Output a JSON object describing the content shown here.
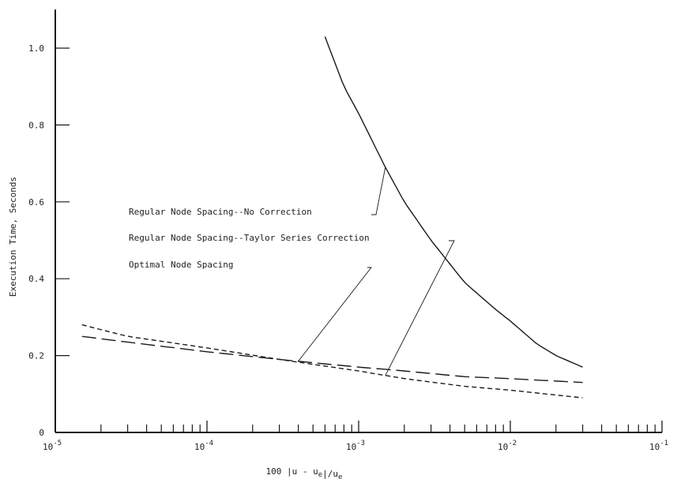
{
  "chart_data": {
    "type": "line",
    "title": "",
    "xlabel": "100 |u - u_e|/u_e",
    "ylabel": "Execution Time, Seconds",
    "x_scale": "log",
    "xlim": [
      1e-05,
      0.1
    ],
    "ylim": [
      0,
      1.1
    ],
    "x_ticks": [
      {
        "value": 1e-05,
        "base": "10",
        "exp": "-5"
      },
      {
        "value": 0.0001,
        "base": "10",
        "exp": "-4"
      },
      {
        "value": 0.001,
        "base": "10",
        "exp": "-3"
      },
      {
        "value": 0.01,
        "base": "10",
        "exp": "-2"
      },
      {
        "value": 0.1,
        "base": "10",
        "exp": "-1"
      }
    ],
    "y_ticks": [
      {
        "value": 0,
        "label": "0"
      },
      {
        "value": 0.2,
        "label": "0.2"
      },
      {
        "value": 0.4,
        "label": "0.4"
      },
      {
        "value": 0.6,
        "label": "0.6"
      },
      {
        "value": 0.8,
        "label": "0.8"
      },
      {
        "value": 1.0,
        "label": "1.0"
      }
    ],
    "grid": false,
    "series": [
      {
        "name": "Regular Node Spacing--No Correction",
        "style": "solid",
        "x": [
          0.0006,
          0.0008,
          0.001,
          0.0015,
          0.002,
          0.003,
          0.005,
          0.008,
          0.01,
          0.015,
          0.02,
          0.03
        ],
        "y": [
          1.03,
          0.9,
          0.83,
          0.69,
          0.6,
          0.5,
          0.39,
          0.32,
          0.29,
          0.23,
          0.2,
          0.17
        ]
      },
      {
        "name": "Regular Node Spacing--Taylor Series Correction",
        "style": "short-dash",
        "x": [
          1.5e-05,
          3e-05,
          0.0001,
          0.0003,
          0.001,
          0.002,
          0.005,
          0.01,
          0.03
        ],
        "y": [
          0.28,
          0.25,
          0.22,
          0.19,
          0.16,
          0.14,
          0.12,
          0.11,
          0.09
        ]
      },
      {
        "name": "Optimal Node Spacing",
        "style": "long-dash",
        "x": [
          1.5e-05,
          3e-05,
          0.0001,
          0.0003,
          0.001,
          0.002,
          0.005,
          0.01,
          0.03
        ],
        "y": [
          0.25,
          0.235,
          0.21,
          0.19,
          0.17,
          0.16,
          0.145,
          0.14,
          0.13
        ]
      }
    ],
    "annotations": [
      {
        "text": "Regular Node Spacing--No Correction",
        "series": 0,
        "at_x": 0.0015
      },
      {
        "text": "Regular Node Spacing--Taylor Series Correction",
        "series": 1,
        "at_x": 0.0015
      },
      {
        "text": "Optimal Node Spacing",
        "series": 2,
        "at_x": 0.0004
      }
    ],
    "colors": {
      "line": "#1a1a1a",
      "text": "#222222",
      "background": "#ffffff"
    }
  }
}
